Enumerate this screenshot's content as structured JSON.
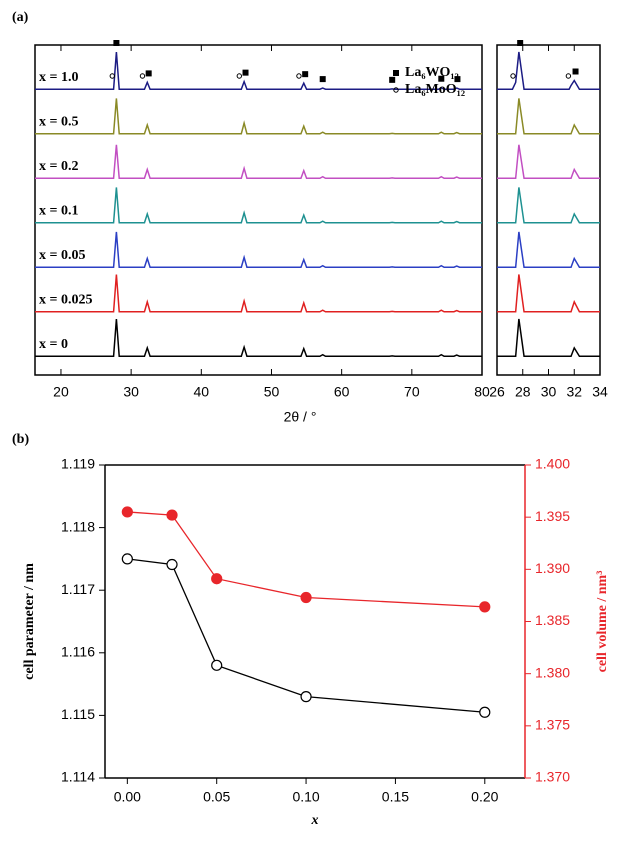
{
  "chart_data": [
    {
      "type": "xrd",
      "panel_label": "(a)",
      "x_label": "2θ / °",
      "x": [
        16.3,
        27.5,
        27.9,
        28.3,
        31.9,
        32.3,
        32.7,
        45.7,
        46.1,
        46.5,
        54.2,
        54.6,
        55.0,
        56.9,
        57.3,
        57.7,
        66.8,
        67.2,
        67.6,
        73.8,
        74.2,
        74.6,
        76.0,
        76.4,
        76.8,
        80
      ],
      "xlim": [
        16.3,
        80
      ],
      "xticks": [
        20,
        30,
        40,
        50,
        60,
        70,
        80
      ],
      "series": [
        {
          "name": "x = 1.0",
          "color": "#1c1c84",
          "values": [
            2,
            2,
            100,
            2,
            2,
            20,
            2,
            2,
            22,
            2,
            2,
            18,
            2,
            2,
            5,
            2,
            2,
            3,
            2,
            2,
            6,
            2,
            2,
            5,
            2,
            2
          ]
        },
        {
          "name": "x = 0.5",
          "color": "#8a8a26",
          "values": [
            2,
            2,
            95,
            2,
            2,
            25,
            2,
            2,
            30,
            2,
            2,
            22,
            2,
            2,
            6,
            2,
            2,
            3,
            2,
            2,
            6,
            2,
            2,
            5,
            2,
            2
          ]
        },
        {
          "name": "x = 0.2",
          "color": "#c24fc2",
          "values": [
            2,
            2,
            90,
            2,
            2,
            25,
            2,
            2,
            28,
            2,
            2,
            22,
            2,
            2,
            6,
            2,
            2,
            3,
            2,
            2,
            6,
            2,
            2,
            5,
            2,
            2
          ]
        },
        {
          "name": "x = 0.1",
          "color": "#1e9191",
          "values": [
            2,
            2,
            95,
            2,
            2,
            25,
            2,
            2,
            28,
            2,
            2,
            22,
            2,
            2,
            6,
            2,
            2,
            3,
            2,
            2,
            6,
            2,
            2,
            5,
            2,
            2
          ]
        },
        {
          "name": "x = 0.05",
          "color": "#2b3fc4",
          "values": [
            2,
            2,
            95,
            2,
            2,
            25,
            2,
            2,
            28,
            2,
            2,
            22,
            2,
            2,
            6,
            2,
            2,
            3,
            2,
            2,
            6,
            2,
            2,
            5,
            2,
            2
          ]
        },
        {
          "name": "x = 0.025",
          "color": "#e02020",
          "values": [
            2,
            2,
            100,
            2,
            2,
            28,
            2,
            2,
            30,
            2,
            2,
            25,
            2,
            2,
            6,
            2,
            2,
            3,
            2,
            2,
            6,
            2,
            2,
            5,
            2,
            2
          ]
        },
        {
          "name": "x = 0",
          "color": "#000000",
          "values": [
            2,
            2,
            100,
            2,
            2,
            24,
            2,
            2,
            26,
            2,
            2,
            22,
            2,
            2,
            6,
            2,
            2,
            3,
            2,
            2,
            6,
            2,
            2,
            5,
            2,
            2
          ]
        }
      ],
      "legend": [
        {
          "symbol": "square",
          "label": "La₆WO₁₂"
        },
        {
          "symbol": "circle",
          "label": "La₆MoO₁₂"
        }
      ],
      "w_peaks": [
        27.9,
        32.5,
        46.3,
        54.8,
        57.3,
        67.2,
        74.2,
        76.5
      ],
      "mo_peaks": [
        27.6,
        31.9,
        45.7,
        54.2
      ]
    },
    {
      "type": "xrd",
      "x": [
        26,
        27.2,
        27.45,
        27.7,
        28.1,
        31.6,
        31.75,
        32.0,
        32.4,
        34
      ],
      "xlim": [
        26,
        34
      ],
      "xticks": [
        26,
        28,
        30,
        32,
        34
      ],
      "series": [
        {
          "color": "#1c1c84",
          "values": [
            2,
            2,
            20,
            100,
            2,
            2,
            12,
            25,
            2,
            2
          ]
        },
        {
          "color": "#8a8a26",
          "values": [
            2,
            2,
            2,
            95,
            2,
            2,
            2,
            25,
            2,
            2
          ]
        },
        {
          "color": "#c24fc2",
          "values": [
            2,
            2,
            2,
            90,
            2,
            2,
            2,
            25,
            2,
            2
          ]
        },
        {
          "color": "#1e9191",
          "values": [
            2,
            2,
            2,
            95,
            2,
            2,
            2,
            25,
            2,
            2
          ]
        },
        {
          "color": "#2b3fc4",
          "values": [
            2,
            2,
            2,
            95,
            2,
            2,
            2,
            25,
            2,
            2
          ]
        },
        {
          "color": "#e02020",
          "values": [
            2,
            2,
            2,
            100,
            2,
            2,
            2,
            28,
            2,
            2
          ]
        },
        {
          "color": "#000000",
          "values": [
            2,
            2,
            2,
            100,
            2,
            2,
            2,
            24,
            2,
            2
          ]
        }
      ],
      "w_peaks": [
        27.8,
        32.1
      ],
      "mo_peaks": [
        27.4,
        31.7
      ]
    },
    {
      "type": "line",
      "panel_label": "(b)",
      "x_label": "x",
      "y_label": "cell parameter / nm",
      "y2_label": "cell volume / nm³",
      "x": [
        0,
        0.025,
        0.05,
        0.1,
        0.2
      ],
      "xlim": [
        -0.0125,
        0.2225
      ],
      "xticks": [
        {
          "value": 0,
          "label": "0.00"
        },
        {
          "value": 0.05,
          "label": "0.05"
        },
        {
          "value": 0.1,
          "label": "0.10"
        },
        {
          "value": 0.15,
          "label": "0.15"
        },
        {
          "value": 0.2,
          "label": "0.20"
        }
      ],
      "ylim": [
        1.114,
        1.119
      ],
      "yticks": [
        1.114,
        1.115,
        1.116,
        1.117,
        1.118,
        1.119
      ],
      "y2lim": [
        1.37,
        1.4
      ],
      "y2ticks": [
        {
          "value": 1.37,
          "label": "1.370"
        },
        {
          "value": 1.375,
          "label": "1.375"
        },
        {
          "value": 1.38,
          "label": "1.380"
        },
        {
          "value": 1.385,
          "label": "1.385"
        },
        {
          "value": 1.39,
          "label": "1.390"
        },
        {
          "value": 1.395,
          "label": "1.395"
        },
        {
          "value": 1.4,
          "label": "1.400"
        }
      ],
      "series": [
        {
          "color": "#000000",
          "marker": "open",
          "values": [
            1.1175,
            1.11741,
            1.1158,
            1.1153,
            1.11505
          ]
        },
        {
          "color": "#e8262b",
          "marker": "filled",
          "axis": "y2",
          "values": [
            1.3955,
            1.3952,
            1.3891,
            1.3873,
            1.3864
          ]
        }
      ]
    }
  ]
}
